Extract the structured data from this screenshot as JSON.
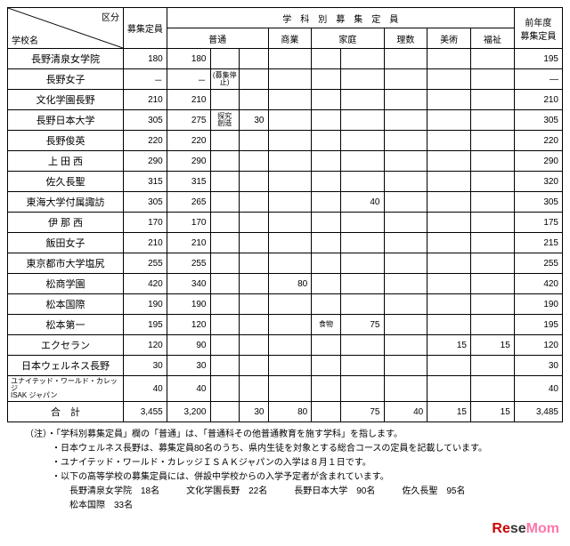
{
  "headers": {
    "corner_top": "区分",
    "corner_bottom": "学校名",
    "quota": "募集定員",
    "dept_title": "学　科　別　募　集　定　員",
    "prev_top": "前年度",
    "prev_bottom": "募集定員",
    "depts": [
      "普通",
      "商業",
      "家庭",
      "理数",
      "美術",
      "福祉"
    ]
  },
  "rows": [
    {
      "school": "長野清泉女学院",
      "quota": "180",
      "cols": [
        "180",
        "",
        "",
        "",
        "",
        "",
        "",
        "",
        ""
      ],
      "prev": "195"
    },
    {
      "school": "長野女子",
      "quota": "－",
      "cols": [
        "－",
        "(募集停止)",
        "",
        "",
        "",
        "",
        "",
        "",
        ""
      ],
      "prev": "―",
      "sub_small": true
    },
    {
      "school": "文化学園長野",
      "quota": "210",
      "cols": [
        "210",
        "",
        "",
        "",
        "",
        "",
        "",
        "",
        ""
      ],
      "prev": "210"
    },
    {
      "school": "長野日本大学",
      "quota": "305",
      "cols": [
        "275",
        "探究\n創造",
        "30",
        "",
        "",
        "",
        "",
        "",
        ""
      ],
      "prev": "305",
      "sub_small": true
    },
    {
      "school": "長野俊英",
      "quota": "220",
      "cols": [
        "220",
        "",
        "",
        "",
        "",
        "",
        "",
        "",
        ""
      ],
      "prev": "220"
    },
    {
      "school": "上 田 西",
      "quota": "290",
      "cols": [
        "290",
        "",
        "",
        "",
        "",
        "",
        "",
        "",
        ""
      ],
      "prev": "290"
    },
    {
      "school": "佐久長聖",
      "quota": "315",
      "cols": [
        "315",
        "",
        "",
        "",
        "",
        "",
        "",
        "",
        ""
      ],
      "prev": "320"
    },
    {
      "school": "東海大学付属諏訪",
      "quota": "305",
      "cols": [
        "265",
        "",
        "",
        "",
        "",
        "40",
        "",
        "",
        ""
      ],
      "prev": "305"
    },
    {
      "school": "伊 那 西",
      "quota": "170",
      "cols": [
        "170",
        "",
        "",
        "",
        "",
        "",
        "",
        "",
        ""
      ],
      "prev": "175"
    },
    {
      "school": "飯田女子",
      "quota": "210",
      "cols": [
        "210",
        "",
        "",
        "",
        "",
        "",
        "",
        "",
        ""
      ],
      "prev": "215"
    },
    {
      "school": "東京都市大学塩尻",
      "quota": "255",
      "cols": [
        "255",
        "",
        "",
        "",
        "",
        "",
        "",
        "",
        ""
      ],
      "prev": "255"
    },
    {
      "school": "松商学園",
      "quota": "420",
      "cols": [
        "340",
        "",
        "",
        "80",
        "",
        "",
        "",
        "",
        ""
      ],
      "prev": "420"
    },
    {
      "school": "松本国際",
      "quota": "190",
      "cols": [
        "190",
        "",
        "",
        "",
        "",
        "",
        "",
        "",
        ""
      ],
      "prev": "190"
    },
    {
      "school": "松本第一",
      "quota": "195",
      "cols": [
        "120",
        "",
        "",
        "",
        "食物",
        "75",
        "",
        "",
        ""
      ],
      "prev": "195",
      "sub_small": true
    },
    {
      "school": "エクセラン",
      "quota": "120",
      "cols": [
        "90",
        "",
        "",
        "",
        "",
        "",
        "",
        "15",
        "15"
      ],
      "prev": "120"
    },
    {
      "school": "日本ウェルネス長野",
      "quota": "30",
      "cols": [
        "30",
        "",
        "",
        "",
        "",
        "",
        "",
        "",
        ""
      ],
      "prev": "30"
    },
    {
      "school": "ユナイテッド・ワールド・カレッジ\nISAK ジャパン",
      "quota": "40",
      "cols": [
        "40",
        "",
        "",
        "",
        "",
        "",
        "",
        "",
        ""
      ],
      "prev": "40",
      "small_school": true
    },
    {
      "school": "合　計",
      "quota": "3,455",
      "cols": [
        "3,200",
        "",
        "30",
        "80",
        "",
        "75",
        "40",
        "15",
        "15"
      ],
      "prev": "3,485"
    }
  ],
  "notes": [
    "（注）・「学科別募集定員」欄の「普通」は、「普通科その他普通教育を施す学科」を指します。",
    "　　　・日本ウェルネス長野は、募集定員80名のうち、県内生徒を対象とする総合コースの定員を記載しています。",
    "　　　・ユナイテッド・ワールド・カレッジＩＳＡＫジャパンの入学は８月１日です。",
    "　　　・以下の高等学校の募集定員には、併設中学校からの入学予定者が含まれています。",
    "　　　　　長野清泉女学院　18名　　　文化学園長野　22名　　　長野日本大学　90名　　　佐久長聖　95名",
    "　　　　　松本国際　33名"
  ],
  "logo": {
    "re": "Re",
    "se": "se",
    "mom": "Mom"
  }
}
